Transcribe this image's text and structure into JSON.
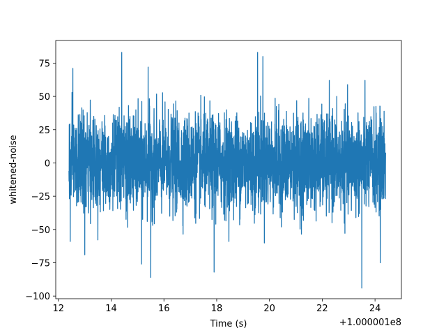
{
  "chart_data": {
    "type": "line",
    "title": "",
    "xlabel": "Time (s)",
    "ylabel": "whitened-noise",
    "x_offset_label": "+1.000001e8",
    "xlim": [
      11.9,
      25.0
    ],
    "ylim": [
      -102,
      92
    ],
    "x_ticks": [
      12,
      14,
      16,
      18,
      20,
      22,
      24
    ],
    "x_tick_labels": [
      "12",
      "14",
      "16",
      "18",
      "20",
      "22",
      "24"
    ],
    "y_ticks": [
      -100,
      -75,
      -50,
      -25,
      0,
      25,
      50,
      75
    ],
    "y_tick_labels": [
      "−100",
      "−75",
      "−50",
      "−25",
      "0",
      "25",
      "50",
      "75"
    ],
    "grid": false,
    "series": [
      {
        "color": "#1f77b4",
        "x_start": 12.4,
        "x_end": 24.4,
        "typical_range": [
          -40,
          40
        ],
        "peaks": [
          {
            "x": 12.55,
            "y": 71
          },
          {
            "x": 14.4,
            "y": 83
          },
          {
            "x": 15.4,
            "y": 72
          },
          {
            "x": 19.55,
            "y": 83
          },
          {
            "x": 19.75,
            "y": 80
          },
          {
            "x": 23.5,
            "y": 78
          }
        ],
        "troughs": [
          {
            "x": 12.45,
            "y": -59
          },
          {
            "x": 13.0,
            "y": -69
          },
          {
            "x": 15.15,
            "y": -76
          },
          {
            "x": 15.5,
            "y": -86
          },
          {
            "x": 17.9,
            "y": -82
          },
          {
            "x": 23.5,
            "y": -94
          },
          {
            "x": 24.2,
            "y": -75
          }
        ]
      }
    ]
  }
}
